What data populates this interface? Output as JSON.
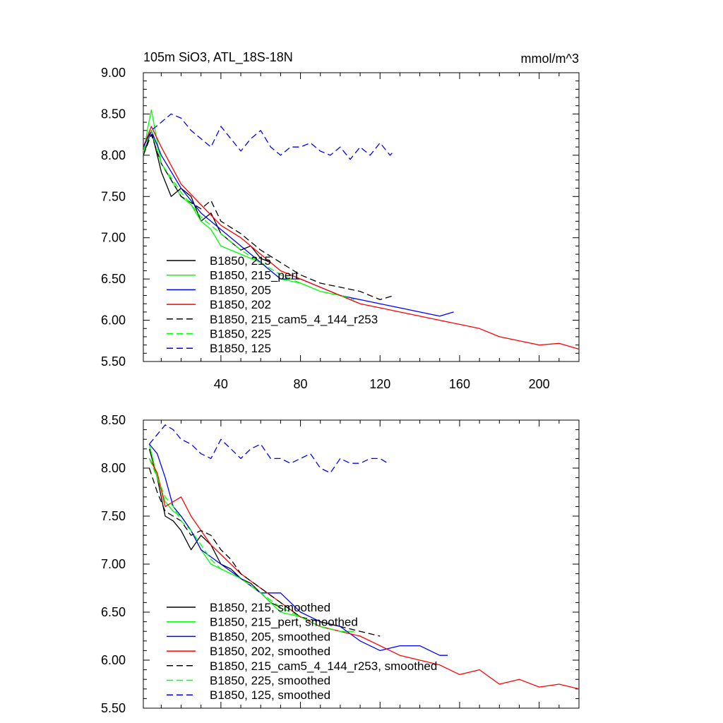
{
  "chart_data": [
    {
      "type": "line",
      "title": "105m SiO3, ATL_18S-18N",
      "units": "mmol/m^3",
      "xlim": [
        1,
        220
      ],
      "ylim": [
        5.5,
        9.0
      ],
      "x_ticks": [
        40,
        80,
        120,
        160,
        200
      ],
      "y_ticks": [
        "9.00",
        "8.50",
        "8.00",
        "7.50",
        "7.00",
        "6.50",
        "6.00",
        "5.50"
      ],
      "legend_position": "bottom-left",
      "grid": false,
      "series": [
        {
          "name": "B1850, 215",
          "color": "#000000",
          "dash": "solid",
          "x": [
            1,
            5,
            10,
            15,
            20,
            25,
            30,
            35,
            40,
            45,
            50,
            55,
            60,
            65
          ],
          "y": [
            8.0,
            8.3,
            7.8,
            7.5,
            7.6,
            7.5,
            7.2,
            7.3,
            7.05,
            6.95,
            6.85,
            6.9,
            6.75,
            6.7
          ]
        },
        {
          "name": "B1850, 215_pert",
          "color": "#00ff00",
          "dash": "solid",
          "x": [
            1,
            3,
            5,
            10,
            15,
            20,
            25,
            30,
            35,
            40,
            50,
            60,
            70,
            80,
            90,
            100,
            105
          ],
          "y": [
            8.0,
            8.3,
            8.55,
            7.9,
            7.7,
            7.5,
            7.4,
            7.2,
            7.1,
            6.9,
            6.8,
            6.7,
            6.5,
            6.45,
            6.35,
            6.3,
            6.25
          ]
        },
        {
          "name": "B1850, 205",
          "color": "#0000ff",
          "dash": "solid",
          "x": [
            1,
            5,
            10,
            20,
            30,
            40,
            50,
            60,
            70,
            80,
            90,
            100,
            110,
            120,
            130,
            140,
            150,
            157
          ],
          "y": [
            8.1,
            8.3,
            8.0,
            7.6,
            7.3,
            7.1,
            6.9,
            6.7,
            6.5,
            6.5,
            6.4,
            6.3,
            6.25,
            6.2,
            6.15,
            6.1,
            6.05,
            6.1
          ]
        },
        {
          "name": "B1850, 202",
          "color": "#ff0000",
          "dash": "solid",
          "x": [
            1,
            5,
            10,
            20,
            30,
            40,
            50,
            60,
            70,
            80,
            90,
            100,
            110,
            120,
            130,
            140,
            150,
            160,
            170,
            180,
            190,
            200,
            210,
            220
          ],
          "y": [
            8.1,
            8.35,
            8.1,
            7.65,
            7.4,
            7.15,
            7.0,
            6.8,
            6.6,
            6.5,
            6.4,
            6.3,
            6.2,
            6.15,
            6.1,
            6.05,
            6.0,
            5.95,
            5.9,
            5.8,
            5.75,
            5.7,
            5.72,
            5.65
          ]
        },
        {
          "name": "B1850, 215_cam5_4_144_r253",
          "color": "#000000",
          "dash": "dash",
          "x": [
            1,
            5,
            10,
            20,
            30,
            35,
            40,
            50,
            60,
            70,
            80,
            90,
            100,
            110,
            120,
            127
          ],
          "y": [
            8.0,
            8.25,
            7.9,
            7.5,
            7.35,
            7.45,
            7.2,
            7.05,
            6.85,
            6.7,
            6.55,
            6.45,
            6.4,
            6.35,
            6.25,
            6.3
          ]
        },
        {
          "name": "B1850, 225",
          "color": "#00ff00",
          "dash": "dash",
          "x": [
            1,
            5,
            10,
            20,
            30,
            40,
            50,
            60,
            70,
            80,
            90,
            100,
            107
          ],
          "y": [
            8.05,
            8.3,
            7.9,
            7.55,
            7.25,
            7.05,
            6.85,
            6.7,
            6.55,
            6.45,
            6.35,
            6.3,
            6.25
          ]
        },
        {
          "name": "B1850, 125",
          "color": "#0000ff",
          "dash": "dash",
          "x": [
            1,
            5,
            10,
            15,
            20,
            25,
            30,
            35,
            40,
            45,
            50,
            55,
            60,
            65,
            70,
            75,
            80,
            85,
            90,
            95,
            100,
            105,
            110,
            115,
            120,
            125,
            127
          ],
          "y": [
            8.1,
            8.3,
            8.4,
            8.5,
            8.45,
            8.3,
            8.2,
            8.1,
            8.35,
            8.2,
            8.05,
            8.2,
            8.3,
            8.1,
            8.0,
            8.1,
            8.1,
            8.15,
            8.05,
            8.0,
            8.1,
            7.95,
            8.1,
            8.0,
            8.15,
            8.0,
            8.05
          ]
        }
      ]
    },
    {
      "type": "line",
      "title": "",
      "units": "",
      "xlim": [
        1,
        220
      ],
      "ylim": [
        5.5,
        8.5
      ],
      "x_ticks": [],
      "y_ticks": [
        "8.50",
        "8.00",
        "7.50",
        "7.00",
        "6.50",
        "6.00",
        "5.50"
      ],
      "legend_position": "bottom-left",
      "grid": false,
      "series": [
        {
          "name": "B1850, 215, smoothed",
          "color": "#000000",
          "dash": "solid",
          "x": [
            4,
            8,
            12,
            16,
            20,
            25,
            30,
            35,
            40,
            45,
            50,
            55,
            60,
            65,
            70
          ],
          "y": [
            8.2,
            7.9,
            7.5,
            7.45,
            7.35,
            7.15,
            7.3,
            7.2,
            7.0,
            6.95,
            6.85,
            6.8,
            6.7,
            6.6,
            6.55
          ]
        },
        {
          "name": "B1850, 215_pert, smoothed",
          "color": "#00ff00",
          "dash": "solid",
          "x": [
            4,
            8,
            12,
            16,
            20,
            25,
            30,
            35,
            40,
            45,
            50,
            60,
            70,
            80,
            90,
            100,
            107
          ],
          "y": [
            8.25,
            7.9,
            7.65,
            7.55,
            7.5,
            7.35,
            7.15,
            7.0,
            6.95,
            6.9,
            6.85,
            6.7,
            6.5,
            6.45,
            6.35,
            6.3,
            6.3
          ]
        },
        {
          "name": "B1850, 205, smoothed",
          "color": "#0000ff",
          "dash": "solid",
          "x": [
            4,
            8,
            12,
            16,
            20,
            25,
            30,
            40,
            50,
            60,
            70,
            80,
            90,
            100,
            110,
            120,
            130,
            140,
            150,
            154
          ],
          "y": [
            8.25,
            8.15,
            7.9,
            7.6,
            7.5,
            7.35,
            7.15,
            7.0,
            6.85,
            6.7,
            6.7,
            6.5,
            6.4,
            6.35,
            6.2,
            6.1,
            6.15,
            6.15,
            6.05,
            6.05
          ]
        },
        {
          "name": "B1850, 202, smoothed",
          "color": "#ff0000",
          "dash": "solid",
          "x": [
            4,
            8,
            12,
            16,
            20,
            25,
            30,
            35,
            40,
            50,
            60,
            70,
            80,
            90,
            100,
            110,
            120,
            130,
            140,
            150,
            160,
            170,
            180,
            190,
            200,
            210,
            220
          ],
          "y": [
            8.1,
            7.95,
            7.6,
            7.65,
            7.7,
            7.5,
            7.35,
            7.2,
            7.1,
            6.9,
            6.75,
            6.6,
            6.45,
            6.35,
            6.3,
            6.25,
            6.15,
            6.05,
            6.0,
            5.95,
            5.85,
            5.9,
            5.75,
            5.8,
            5.72,
            5.75,
            5.7
          ]
        },
        {
          "name": "B1850, 215_cam5_4_144_r253, smoothed",
          "color": "#000000",
          "dash": "dash",
          "x": [
            4,
            8,
            12,
            16,
            20,
            25,
            30,
            35,
            40,
            45,
            50,
            60,
            70,
            80,
            90,
            100,
            110,
            120
          ],
          "y": [
            8.0,
            7.75,
            7.55,
            7.5,
            7.45,
            7.3,
            7.35,
            7.3,
            7.15,
            7.05,
            6.9,
            6.75,
            6.6,
            6.45,
            6.4,
            6.35,
            6.3,
            6.25
          ]
        },
        {
          "name": "B1850, 225, smoothed",
          "color": "#00ff00",
          "dash": "dash",
          "x": [
            4,
            8,
            12,
            16,
            20,
            25,
            30,
            35,
            40,
            50,
            60,
            70,
            80,
            90,
            100,
            105
          ],
          "y": [
            8.1,
            7.9,
            7.7,
            7.6,
            7.45,
            7.35,
            7.2,
            7.05,
            6.95,
            6.85,
            6.7,
            6.55,
            6.45,
            6.35,
            6.3,
            6.3
          ]
        },
        {
          "name": "B1850, 125, smoothed",
          "color": "#0000ff",
          "dash": "dash",
          "x": [
            4,
            8,
            12,
            16,
            20,
            25,
            30,
            35,
            40,
            45,
            50,
            55,
            60,
            65,
            70,
            75,
            80,
            85,
            90,
            95,
            100,
            105,
            110,
            115,
            120,
            124
          ],
          "y": [
            8.25,
            8.35,
            8.45,
            8.4,
            8.3,
            8.25,
            8.15,
            8.1,
            8.3,
            8.2,
            8.1,
            8.2,
            8.25,
            8.1,
            8.1,
            8.05,
            8.1,
            8.15,
            8.0,
            7.95,
            8.1,
            8.05,
            8.05,
            8.1,
            8.1,
            8.05
          ]
        }
      ]
    }
  ]
}
